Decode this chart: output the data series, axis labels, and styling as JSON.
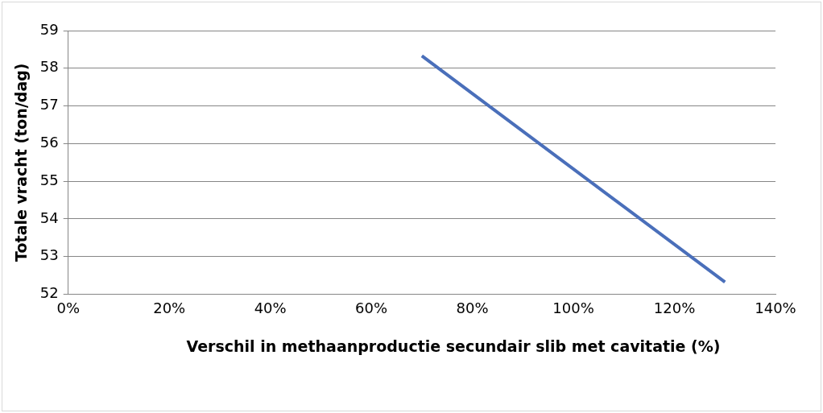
{
  "chart_data": {
    "type": "line",
    "xlabel": "Verschil in methaanproductie secundair slib met cavitatie (%)",
    "ylabel": "Totale vracht (ton/dag)",
    "x": [
      70,
      130
    ],
    "series": [
      {
        "color": "#4a6fba",
        "values": [
          58.33,
          52.32
        ]
      }
    ],
    "xlim": [
      0,
      140
    ],
    "xticks": [
      {
        "value": 0,
        "label": "0%"
      },
      {
        "value": 20,
        "label": "20%"
      },
      {
        "value": 40,
        "label": "40%"
      },
      {
        "value": 60,
        "label": "60%"
      },
      {
        "value": 80,
        "label": "80%"
      },
      {
        "value": 100,
        "label": "100%"
      },
      {
        "value": 120,
        "label": "120%"
      },
      {
        "value": 140,
        "label": "140%"
      }
    ],
    "ylim": [
      52,
      59
    ],
    "yticks": [
      52,
      53,
      54,
      55,
      56,
      57,
      58,
      59
    ],
    "grid": "y",
    "legend": false,
    "marker": "none",
    "line_style": "solid"
  }
}
